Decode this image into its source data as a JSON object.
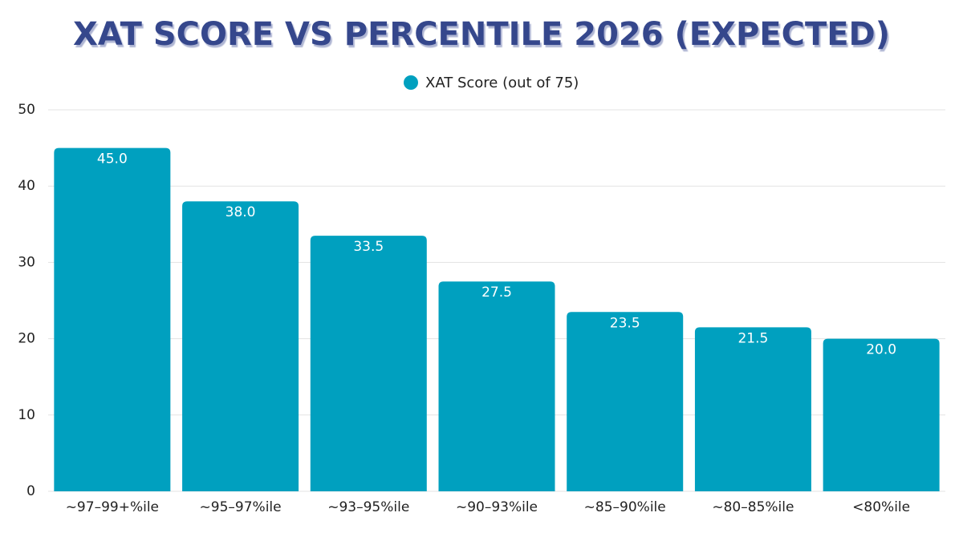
{
  "chart_data": {
    "type": "bar",
    "title": "XAT SCORE VS PERCENTILE 2026 (EXPECTED)",
    "categories": [
      "~97–99+%ile",
      "~95–97%ile",
      "~93–95%ile",
      "~90–93%ile",
      "~85–90%ile",
      "~80–85%ile",
      "<80%ile"
    ],
    "series": [
      {
        "name": "XAT Score (out of 75)",
        "color": "#00a0bf",
        "values": [
          45,
          38,
          33.5,
          27.5,
          23.5,
          21.5,
          20
        ],
        "value_labels": [
          "45.0",
          "38.0",
          "33.5",
          "27.5",
          "23.5",
          "21.5",
          "20.0"
        ]
      }
    ],
    "ylim": [
      0,
      50
    ],
    "yticks": [
      0,
      10,
      20,
      30,
      40,
      50
    ],
    "grid": true,
    "legend": "top"
  }
}
